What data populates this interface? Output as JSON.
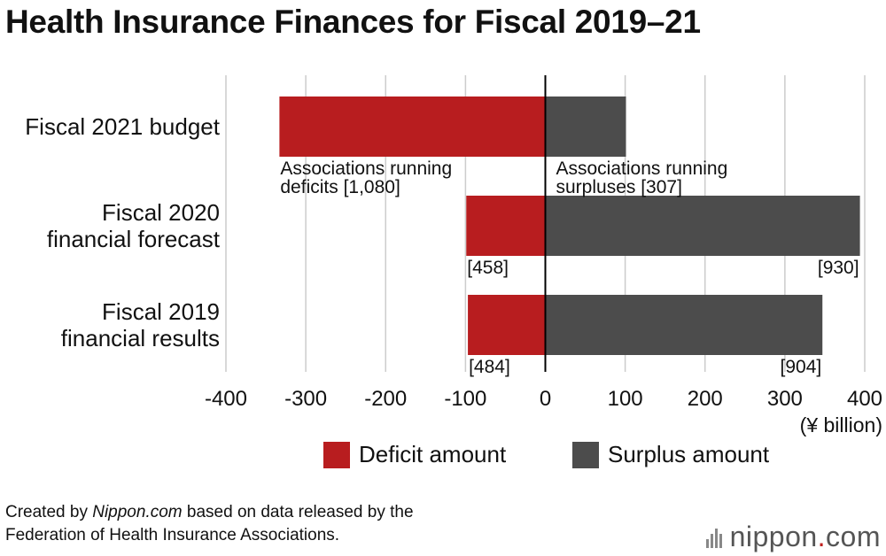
{
  "title": "Health Insurance Finances for Fiscal 2019–21",
  "colors": {
    "deficit": "#b81d1f",
    "surplus": "#4c4c4c",
    "grid": "#cccccc",
    "zero_line": "#000000"
  },
  "chart_data": {
    "type": "bar",
    "orientation": "horizontal",
    "title": "Health Insurance Finances for Fiscal 2019–21",
    "xlabel": "(¥ billion)",
    "xlim": [
      -400,
      400
    ],
    "xticks": [
      -400,
      -300,
      -200,
      -100,
      0,
      100,
      200,
      300,
      400
    ],
    "xtick_labels": [
      "-400",
      "-300",
      "-200",
      "-100",
      "0",
      "100",
      "200",
      "300",
      "400"
    ],
    "categories": [
      [
        "Fiscal 2021 budget"
      ],
      [
        "Fiscal 2020",
        "financial forecast"
      ],
      [
        "Fiscal 2019",
        "financial results"
      ]
    ],
    "series": [
      {
        "name": "Deficit amount",
        "values": [
          -333,
          -99,
          -97
        ]
      },
      {
        "name": "Surplus amount",
        "values": [
          101,
          394,
          347
        ]
      }
    ],
    "annotations": [
      {
        "row": 0,
        "side": "deficit",
        "lines": [
          "Associations running",
          "deficits [1,080]"
        ]
      },
      {
        "row": 0,
        "side": "surplus",
        "lines": [
          "Associations running",
          "surpluses [307]"
        ]
      },
      {
        "row": 1,
        "side": "deficit",
        "lines": [
          "[458]"
        ]
      },
      {
        "row": 1,
        "side": "surplus",
        "lines": [
          "[930]"
        ]
      },
      {
        "row": 2,
        "side": "deficit",
        "lines": [
          "[484]"
        ]
      },
      {
        "row": 2,
        "side": "surplus",
        "lines": [
          "[904]"
        ]
      }
    ],
    "legend": [
      "Deficit amount",
      "Surplus amount"
    ],
    "grid": true
  },
  "footer": {
    "prefix": "Created by ",
    "source_name": "Nippon.com",
    "suffix": " based on data released by the",
    "line2": "Federation of Health Insurance Associations."
  },
  "logo": {
    "name": "nippon",
    "dot": ".",
    "tld": "com"
  }
}
